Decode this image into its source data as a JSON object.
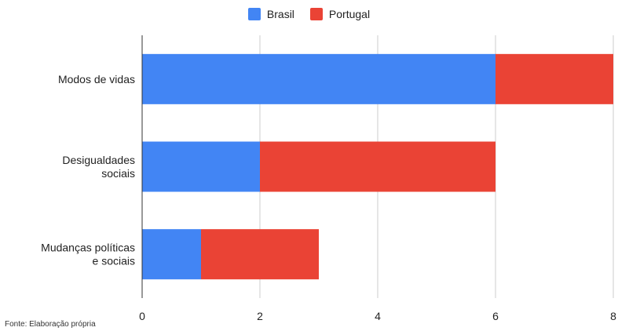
{
  "colors": {
    "brasil": "#4285f4",
    "portugal": "#ea4335",
    "grid": "#cccccc",
    "axis": "#333333"
  },
  "legend": {
    "position": "top",
    "items": [
      {
        "label": "Brasil",
        "color": "#4285f4"
      },
      {
        "label": "Portugal",
        "color": "#ea4335"
      }
    ]
  },
  "source_note": "Fonte: Elaboração própria",
  "chart_data": {
    "type": "bar",
    "orientation": "horizontal",
    "stacked": true,
    "categories": [
      [
        "Modos de vidas"
      ],
      [
        "Desigualdades",
        "sociais"
      ],
      [
        "Mudanças políticas",
        "e sociais"
      ]
    ],
    "series": [
      {
        "name": "Brasil",
        "color": "#4285f4",
        "values": [
          6,
          2,
          1
        ]
      },
      {
        "name": "Portugal",
        "color": "#ea4335",
        "values": [
          2,
          4,
          2
        ]
      }
    ],
    "xlim": [
      0,
      8
    ],
    "xticks": [
      "0",
      "2",
      "4",
      "6",
      "8"
    ],
    "grid": true
  }
}
